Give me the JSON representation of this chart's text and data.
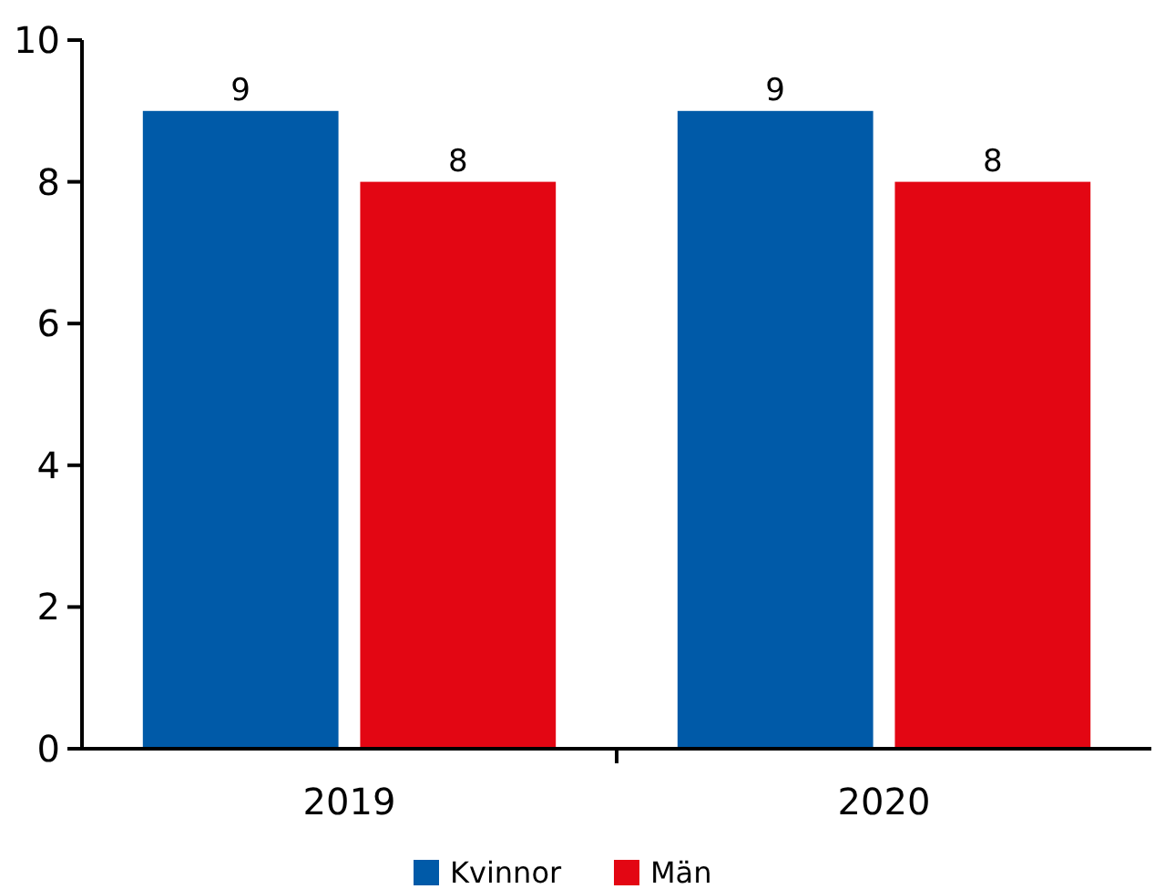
{
  "chart_data": {
    "type": "bar",
    "categories": [
      "2019",
      "2020"
    ],
    "series": [
      {
        "name": "Kvinnor",
        "color": "#005aa8",
        "values": [
          9,
          9
        ]
      },
      {
        "name": "Män",
        "color": "#e30613",
        "values": [
          8,
          8
        ]
      }
    ],
    "ylim": [
      0,
      10
    ],
    "yticks": [
      0,
      2,
      4,
      6,
      8,
      10
    ],
    "data_labels": true,
    "legend": "bottom",
    "grid": false
  }
}
